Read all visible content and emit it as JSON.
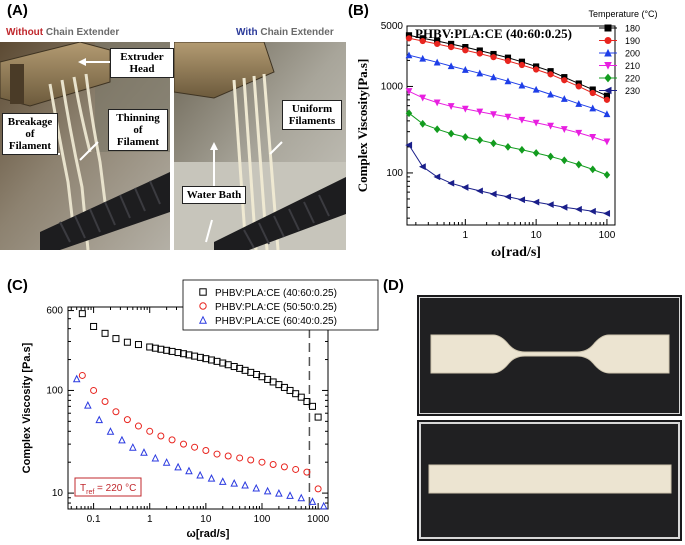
{
  "panels": {
    "a": {
      "label": "(A)",
      "caption_left": {
        "keyword": "Without",
        "rest": " Chain Extender"
      },
      "caption_right": {
        "keyword": "With",
        "rest": " Chain Extender"
      },
      "callouts": {
        "extruder_head": "Extruder\nHead",
        "breakage": "Breakage\nof\nFilament",
        "thinning": "Thinning\nof\nFilament",
        "uniform": "Uniform\nFilaments",
        "water_bath": "Water Bath"
      }
    },
    "b": {
      "label": "(B)"
    },
    "c": {
      "label": "(C)"
    },
    "d": {
      "label": "(D)"
    }
  },
  "colors": {
    "red": "#c0282d",
    "blue": "#2b3a9a"
  },
  "chart_data": [
    {
      "id": "b",
      "type": "line",
      "title": "PHBV:PLA:CE (40:60:0.25)",
      "xlabel": "ω[rad/s]",
      "ylabel": "Complex Viscosity[Pa.s]",
      "xscale": "log",
      "yscale": "log",
      "xlim": [
        0.15,
        130
      ],
      "ylim": [
        25,
        5000
      ],
      "xticks": [
        "1",
        "10",
        "100"
      ],
      "yticks": [
        "100",
        "1000",
        "5000"
      ],
      "legend_title": "Temperature (°C)",
      "legend_position": "top-right",
      "x": [
        0.16,
        0.25,
        0.4,
        0.63,
        1,
        1.6,
        2.5,
        4,
        6.3,
        10,
        16,
        25,
        40,
        63,
        100
      ],
      "series": [
        {
          "name": "180",
          "color": "#000000",
          "marker": "square",
          "values": [
            3900,
            3600,
            3350,
            3100,
            2850,
            2600,
            2370,
            2150,
            1930,
            1700,
            1500,
            1280,
            1080,
            920,
            780
          ]
        },
        {
          "name": "190",
          "color": "#e8251f",
          "marker": "circle",
          "values": [
            3600,
            3350,
            3100,
            2850,
            2620,
            2400,
            2180,
            1970,
            1770,
            1570,
            1380,
            1180,
            1000,
            840,
            700
          ]
        },
        {
          "name": "200",
          "color": "#1f3fe8",
          "marker": "triangle-up",
          "values": [
            2300,
            2100,
            1900,
            1720,
            1560,
            1420,
            1280,
            1150,
            1030,
            920,
            810,
            720,
            630,
            560,
            480
          ]
        },
        {
          "name": "210",
          "color": "#e81fe0",
          "marker": "triangle-down",
          "values": [
            880,
            740,
            650,
            590,
            550,
            510,
            475,
            445,
            410,
            380,
            350,
            320,
            290,
            260,
            230
          ]
        },
        {
          "name": "220",
          "color": "#139c1f",
          "marker": "diamond",
          "values": [
            490,
            370,
            320,
            285,
            260,
            240,
            220,
            200,
            185,
            170,
            155,
            140,
            125,
            110,
            95
          ]
        },
        {
          "name": "230",
          "color": "#1a1f8a",
          "marker": "triangle-left",
          "values": [
            210,
            118,
            90,
            76,
            68,
            62,
            57,
            53,
            49,
            46,
            43,
            40,
            38,
            36,
            34
          ]
        }
      ]
    },
    {
      "id": "c",
      "type": "scatter",
      "title": "",
      "xlabel": "ω[rad/s]",
      "ylabel": "Complex Viscosity [Pa.s]",
      "xscale": "log",
      "yscale": "log",
      "xlim": [
        0.035,
        1500
      ],
      "ylim": [
        7,
        650
      ],
      "xticks": [
        "0.1",
        "1",
        "10",
        "100",
        "1000"
      ],
      "yticks": [
        "10",
        "100",
        "600"
      ],
      "legend_position": "top-right",
      "annotation": {
        "prefix": "T",
        "subscript": "ref",
        "suffix": " = 220 °C"
      },
      "reference_line_x": 700,
      "series": [
        {
          "name": "PHBV:PLA:CE (40:60:0.25)",
          "color": "#000000",
          "marker": "square",
          "x": [
            0.063,
            0.1,
            0.16,
            0.25,
            0.4,
            0.63,
            1,
            1.26,
            1.58,
            2,
            2.5,
            3.2,
            4,
            5,
            6.3,
            8,
            10,
            12.6,
            15.8,
            20,
            25,
            32,
            40,
            50,
            63,
            80,
            100,
            126,
            158,
            200,
            251,
            316,
            398,
            501,
            631,
            794,
            1000
          ],
          "values": [
            560,
            420,
            360,
            320,
            295,
            280,
            265,
            258,
            252,
            246,
            240,
            234,
            228,
            222,
            216,
            210,
            204,
            198,
            192,
            185,
            178,
            171,
            164,
            157,
            150,
            143,
            136,
            128,
            121,
            114,
            107,
            100,
            93,
            86,
            78,
            70,
            55
          ]
        },
        {
          "name": "PHBV:PLA:CE (50:50:0.25)",
          "color": "#e8251f",
          "marker": "circle",
          "x": [
            0.063,
            0.1,
            0.16,
            0.25,
            0.4,
            0.63,
            1,
            1.58,
            2.5,
            4,
            6.3,
            10,
            15.8,
            25,
            40,
            63,
            100,
            158,
            251,
            398,
            631,
            1000
          ],
          "values": [
            140,
            100,
            78,
            62,
            52,
            45,
            40,
            36,
            33,
            30,
            28,
            26,
            24,
            23,
            22,
            21,
            20,
            19,
            18,
            17,
            16,
            11
          ]
        },
        {
          "name": "PHBV:PLA:CE (60:40:0.25)",
          "color": "#2b3ae0",
          "marker": "triangle-up",
          "x": [
            0.05,
            0.079,
            0.126,
            0.2,
            0.32,
            0.5,
            0.79,
            1.26,
            2,
            3.2,
            5,
            7.9,
            12.6,
            20,
            32,
            50,
            79,
            126,
            200,
            316,
            501,
            794,
            1260
          ],
          "values": [
            130,
            72,
            52,
            40,
            33,
            28,
            25,
            22,
            20,
            18,
            16.5,
            15,
            14,
            13,
            12.5,
            12,
            11.2,
            10.5,
            10,
            9.5,
            9,
            8.3,
            7.5
          ]
        }
      ]
    }
  ]
}
